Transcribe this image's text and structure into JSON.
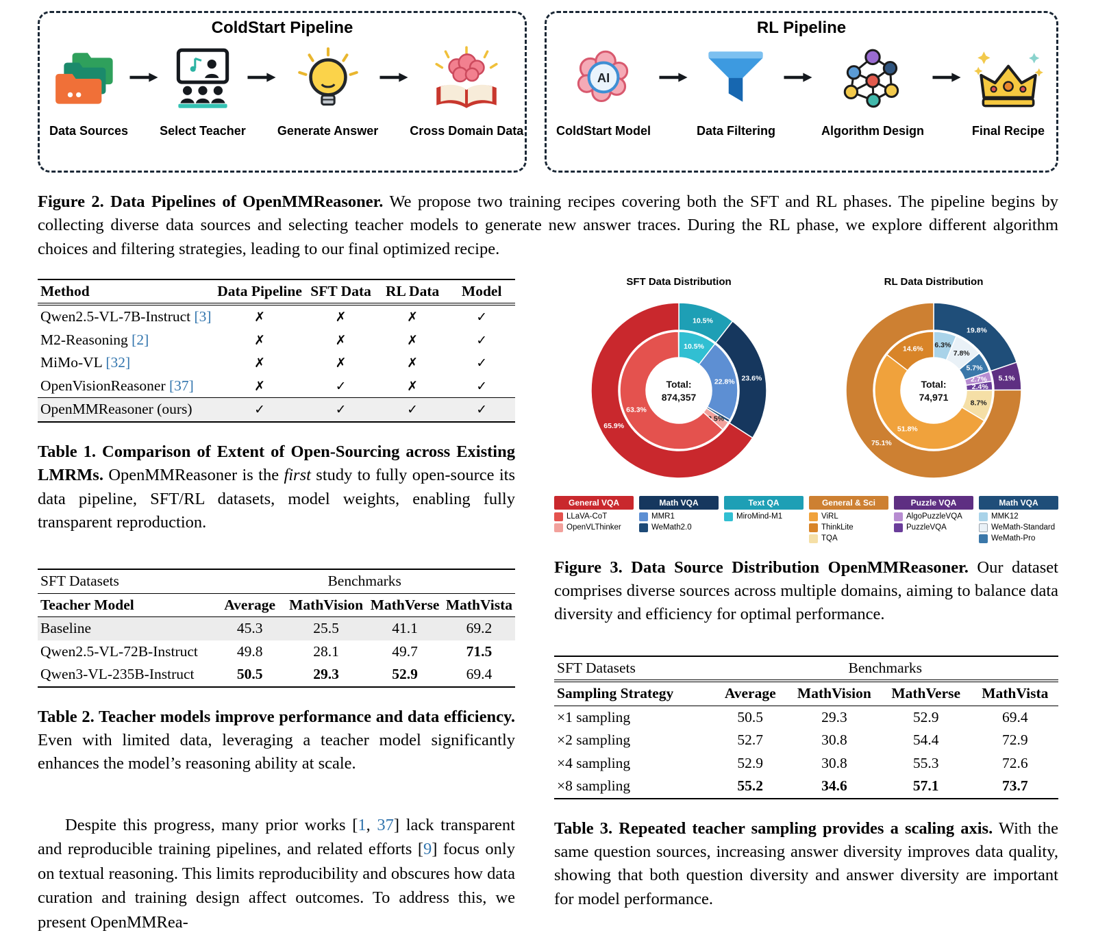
{
  "figure2": {
    "coldstart": {
      "title": "ColdStart Pipeline",
      "stages": [
        {
          "label": "Data Sources"
        },
        {
          "label": "Select Teacher"
        },
        {
          "label": "Generate Answer"
        },
        {
          "label": "Cross Domain Data"
        }
      ]
    },
    "rl": {
      "title": "RL Pipeline",
      "stages": [
        {
          "label": "ColdStart Model"
        },
        {
          "label": "Data Filtering"
        },
        {
          "label": "Algorithm Design"
        },
        {
          "label": "Final Recipe"
        }
      ]
    },
    "caption": {
      "lead": "Figure 2. Data Pipelines of OpenMMReasoner.",
      "text": "We propose two training recipes covering both the SFT and RL phases. The pipeline begins by collecting diverse data sources and selecting teacher models to generate new answer traces. During the RL phase, we explore different algorithm choices and filtering strategies, leading to our final optimized recipe."
    }
  },
  "table1": {
    "headers": [
      "Method",
      "Data Pipeline",
      "SFT Data",
      "RL Data",
      "Model"
    ],
    "rows": [
      {
        "name": "Qwen2.5-VL-7B-Instruct",
        "cite": "[3]",
        "cells": [
          "✗",
          "✗",
          "✗",
          "✓"
        ]
      },
      {
        "name": "M2-Reasoning",
        "cite": "[2]",
        "cells": [
          "✗",
          "✗",
          "✗",
          "✓"
        ]
      },
      {
        "name": "MiMo-VL",
        "cite": "[32]",
        "cells": [
          "✗",
          "✗",
          "✗",
          "✓"
        ]
      },
      {
        "name": "OpenVisionReasoner",
        "cite": "[37]",
        "cells": [
          "✗",
          "✓",
          "✗",
          "✓"
        ]
      },
      {
        "name": "OpenMMReasoner (ours)",
        "cite": "",
        "cells": [
          "✓",
          "✓",
          "✓",
          "✓"
        ]
      }
    ],
    "caption": {
      "lead": "Table 1. Comparison of Extent of Open-Sourcing across Existing LMRMs.",
      "t1": "OpenMMReasoner is the ",
      "emph": "first",
      "t2": " study to fully open-source its data pipeline, SFT/RL datasets, model weights, enabling fully transparent reproduction."
    }
  },
  "table2": {
    "group_left": "SFT Datasets",
    "group_right": "Benchmarks",
    "headers": [
      "Teacher Model",
      "Average",
      "MathVision",
      "MathVerse",
      "MathVista"
    ],
    "rows": [
      {
        "name": "Baseline",
        "cells": [
          "45.3",
          "25.5",
          "41.1",
          "69.2"
        ]
      },
      {
        "name": "Qwen2.5-VL-72B-Instruct",
        "cells": [
          "49.8",
          "28.1",
          "49.7",
          "71.5"
        ]
      },
      {
        "name": "Qwen3-VL-235B-Instruct",
        "cells": [
          "50.5",
          "29.3",
          "52.9",
          "69.4"
        ]
      }
    ],
    "caption": {
      "lead": "Table 2. Teacher models improve performance and data efficiency.",
      "text": "Even with limited data, leveraging a teacher model significantly enhances the model’s reasoning ability at scale."
    }
  },
  "table3": {
    "group_left": "SFT Datasets",
    "group_right": "Benchmarks",
    "headers": [
      "Sampling Strategy",
      "Average",
      "MathVision",
      "MathVerse",
      "MathVista"
    ],
    "rows": [
      {
        "name": "×1 sampling",
        "cells": [
          "50.5",
          "29.3",
          "52.9",
          "69.4"
        ]
      },
      {
        "name": "×2 sampling",
        "cells": [
          "52.7",
          "30.8",
          "54.4",
          "72.9"
        ]
      },
      {
        "name": "×4 sampling",
        "cells": [
          "52.9",
          "30.8",
          "55.3",
          "72.6"
        ]
      },
      {
        "name": "×8 sampling",
        "cells": [
          "55.2",
          "34.6",
          "57.1",
          "73.7"
        ]
      }
    ],
    "caption": {
      "lead": "Table 3. Repeated teacher sampling provides a scaling axis.",
      "text": "With the same question sources, increasing answer diversity improves data quality, showing that both question diversity and answer diversity are important for model performance."
    }
  },
  "figure3_caption": {
    "lead": "Figure 3. Data Source Distribution OpenMMReasoner.",
    "text": "Our dataset comprises diverse sources across multiple domains, aiming to balance data diversity and efficiency for optimal performance."
  },
  "paragraph": {
    "p1": "Despite this progress, many prior works [",
    "c1": "1",
    "s1": ", ",
    "c2": "37",
    "p2": "] lack transparent and reproducible training pipelines, and related efforts [",
    "c3": "9",
    "p3": "] focus only on textual reasoning. This limits reproducibility and obscures how data curation and training design affect outcomes. To address this, we present OpenMMRea-"
  },
  "chart_data": [
    {
      "type": "pie",
      "variant": "two-ring-donut",
      "title": "SFT Data Distribution",
      "center_label": "Total:",
      "center_value": "874,357",
      "outer_ring": [
        {
          "label": "Text QA",
          "pct": 10.5,
          "color": "#1e9fb5"
        },
        {
          "label": "Math VQA",
          "pct": 23.6,
          "color": "#16375e"
        },
        {
          "label": "General VQA",
          "pct": 65.9,
          "color": "#c9282d"
        }
      ],
      "inner_ring": [
        {
          "label": "MiroMind-M1",
          "pct": 10.5,
          "color": "#31bfd2"
        },
        {
          "label": "MMR1",
          "pct": 22.8,
          "color": "#5d8fd3"
        },
        {
          "label": "WeMath2.0",
          "pct": 0.8,
          "color": "#1d4a77"
        },
        {
          "label": "OpenVLThinker",
          "pct": 2.5,
          "color": "#f2a19c"
        },
        {
          "label": "LLaVA-CoT",
          "pct": 63.3,
          "color": "#e4524e"
        }
      ],
      "legend": [
        {
          "header": "General VQA",
          "color": "#c9282d",
          "items": [
            {
              "label": "LLaVA-CoT",
              "color": "#e4524e"
            },
            {
              "label": "OpenVLThinker",
              "color": "#f2a19c"
            }
          ]
        },
        {
          "header": "Math VQA",
          "color": "#16375e",
          "items": [
            {
              "label": "MMR1",
              "color": "#5d8fd3"
            },
            {
              "label": "WeMath2.0",
              "color": "#1d4a77"
            }
          ]
        },
        {
          "header": "Text QA",
          "color": "#1e9fb5",
          "items": [
            {
              "label": "MiroMind-M1",
              "color": "#31bfd2"
            }
          ]
        }
      ]
    },
    {
      "type": "pie",
      "variant": "two-ring-donut",
      "title": "RL Data Distribution",
      "center_label": "Total:",
      "center_value": "74,971",
      "outer_ring": [
        {
          "label": "Math VQA",
          "pct": 19.8,
          "color": "#1f4e79"
        },
        {
          "label": "Puzzle VQA",
          "pct": 5.1,
          "color": "#5e2f82"
        },
        {
          "label": "General & Sci",
          "pct": 75.1,
          "color": "#cd8032"
        }
      ],
      "inner_ring": [
        {
          "label": "MMK12",
          "pct": 6.3,
          "color": "#a9d3e9"
        },
        {
          "label": "WeMath-Standard",
          "pct": 7.8,
          "color": "#e9f1f7"
        },
        {
          "label": "WeMath-Pro",
          "pct": 5.7,
          "color": "#3a77a9"
        },
        {
          "label": "AlgoPuzzleVQA",
          "pct": 2.7,
          "color": "#b78cd1"
        },
        {
          "label": "PuzzleVQA",
          "pct": 2.4,
          "color": "#6a3d9a"
        },
        {
          "label": "TQA",
          "pct": 8.7,
          "color": "#f5dfa6"
        },
        {
          "label": "ViRL",
          "pct": 51.8,
          "color": "#f0a23c"
        },
        {
          "label": "ThinkLite",
          "pct": 14.6,
          "color": "#d88428"
        }
      ],
      "legend": [
        {
          "header": "General & Sci",
          "color": "#cd8032",
          "items": [
            {
              "label": "ViRL",
              "color": "#f0a23c"
            },
            {
              "label": "ThinkLite",
              "color": "#d88428"
            },
            {
              "label": "TQA",
              "color": "#f5dfa6"
            }
          ]
        },
        {
          "header": "Puzzle VQA",
          "color": "#5e2f82",
          "items": [
            {
              "label": "AlgoPuzzleVQA",
              "color": "#b78cd1"
            },
            {
              "label": "PuzzleVQA",
              "color": "#6a3d9a"
            }
          ]
        },
        {
          "header": "Math VQA",
          "color": "#1f4e79",
          "items": [
            {
              "label": "MMK12",
              "color": "#a9d3e9"
            },
            {
              "label": "WeMath-Standard",
              "color": "#e9f1f7"
            },
            {
              "label": "WeMath-Pro",
              "color": "#3a77a9"
            }
          ]
        }
      ]
    }
  ]
}
